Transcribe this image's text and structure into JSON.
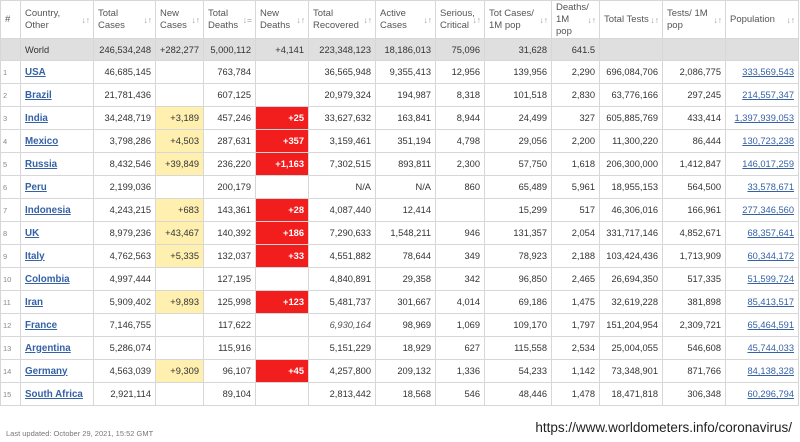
{
  "headers": [
    {
      "label": "#",
      "sort": false
    },
    {
      "label": "Country, Other",
      "sort": true
    },
    {
      "label": "Total Cases",
      "sort": true
    },
    {
      "label": "New Cases",
      "sort": true
    },
    {
      "label": "Total Deaths",
      "sort": true,
      "active": true
    },
    {
      "label": "New Deaths",
      "sort": true
    },
    {
      "label": "Total Recovered",
      "sort": true
    },
    {
      "label": "Active Cases",
      "sort": true
    },
    {
      "label": "Serious, Critical",
      "sort": true
    },
    {
      "label": "Tot Cases/ 1M pop",
      "sort": true
    },
    {
      "label": "Deaths/ 1M pop",
      "sort": true
    },
    {
      "label": "Total Tests",
      "sort": true
    },
    {
      "label": "Tests/ 1M pop",
      "sort": true
    },
    {
      "label": "Population",
      "sort": true
    }
  ],
  "sort_icon": "↓↑",
  "sort_icon_active": "↓=",
  "world": {
    "name": "World",
    "total_cases": "246,534,248",
    "new_cases": "+282,277",
    "total_deaths": "5,000,112",
    "new_deaths": "+4,141",
    "total_recovered": "223,348,123",
    "active_cases": "18,186,013",
    "serious": "75,096",
    "cases_per_1m": "31,628",
    "deaths_per_1m": "641.5",
    "total_tests": "",
    "tests_per_1m": "",
    "population": ""
  },
  "rows": [
    {
      "idx": "1",
      "name": "USA",
      "total_cases": "46,685,145",
      "new_cases": "",
      "total_deaths": "763,784",
      "new_deaths": "",
      "total_recovered": "36,565,948",
      "active_cases": "9,355,413",
      "serious": "12,956",
      "cases_per_1m": "139,956",
      "deaths_per_1m": "2,290",
      "total_tests": "696,084,706",
      "tests_per_1m": "2,086,775",
      "population": "333,569,543"
    },
    {
      "idx": "2",
      "name": "Brazil",
      "total_cases": "21,781,436",
      "new_cases": "",
      "total_deaths": "607,125",
      "new_deaths": "",
      "total_recovered": "20,979,324",
      "active_cases": "194,987",
      "serious": "8,318",
      "cases_per_1m": "101,518",
      "deaths_per_1m": "2,830",
      "total_tests": "63,776,166",
      "tests_per_1m": "297,245",
      "population": "214,557,347"
    },
    {
      "idx": "3",
      "name": "India",
      "total_cases": "34,248,719",
      "new_cases": "+3,189",
      "total_deaths": "457,246",
      "new_deaths": "+25",
      "total_recovered": "33,627,632",
      "active_cases": "163,841",
      "serious": "8,944",
      "cases_per_1m": "24,499",
      "deaths_per_1m": "327",
      "total_tests": "605,885,769",
      "tests_per_1m": "433,414",
      "population": "1,397,939,053"
    },
    {
      "idx": "4",
      "name": "Mexico",
      "total_cases": "3,798,286",
      "new_cases": "+4,503",
      "total_deaths": "287,631",
      "new_deaths": "+357",
      "total_recovered": "3,159,461",
      "active_cases": "351,194",
      "serious": "4,798",
      "cases_per_1m": "29,056",
      "deaths_per_1m": "2,200",
      "total_tests": "11,300,220",
      "tests_per_1m": "86,444",
      "population": "130,723,238"
    },
    {
      "idx": "5",
      "name": "Russia",
      "total_cases": "8,432,546",
      "new_cases": "+39,849",
      "total_deaths": "236,220",
      "new_deaths": "+1,163",
      "total_recovered": "7,302,515",
      "active_cases": "893,811",
      "serious": "2,300",
      "cases_per_1m": "57,750",
      "deaths_per_1m": "1,618",
      "total_tests": "206,300,000",
      "tests_per_1m": "1,412,847",
      "population": "146,017,259"
    },
    {
      "idx": "6",
      "name": "Peru",
      "total_cases": "2,199,036",
      "new_cases": "",
      "total_deaths": "200,179",
      "new_deaths": "",
      "total_recovered": "N/A",
      "active_cases": "N/A",
      "serious": "860",
      "cases_per_1m": "65,489",
      "deaths_per_1m": "5,961",
      "total_tests": "18,955,153",
      "tests_per_1m": "564,500",
      "population": "33,578,671"
    },
    {
      "idx": "7",
      "name": "Indonesia",
      "total_cases": "4,243,215",
      "new_cases": "+683",
      "total_deaths": "143,361",
      "new_deaths": "+28",
      "total_recovered": "4,087,440",
      "active_cases": "12,414",
      "serious": "",
      "cases_per_1m": "15,299",
      "deaths_per_1m": "517",
      "total_tests": "46,306,016",
      "tests_per_1m": "166,961",
      "population": "277,346,560"
    },
    {
      "idx": "8",
      "name": "UK",
      "total_cases": "8,979,236",
      "new_cases": "+43,467",
      "total_deaths": "140,392",
      "new_deaths": "+186",
      "total_recovered": "7,290,633",
      "active_cases": "1,548,211",
      "serious": "946",
      "cases_per_1m": "131,357",
      "deaths_per_1m": "2,054",
      "total_tests": "331,717,146",
      "tests_per_1m": "4,852,671",
      "population": "68,357,641"
    },
    {
      "idx": "9",
      "name": "Italy",
      "total_cases": "4,762,563",
      "new_cases": "+5,335",
      "total_deaths": "132,037",
      "new_deaths": "+33",
      "total_recovered": "4,551,882",
      "active_cases": "78,644",
      "serious": "349",
      "cases_per_1m": "78,923",
      "deaths_per_1m": "2,188",
      "total_tests": "103,424,436",
      "tests_per_1m": "1,713,909",
      "population": "60,344,172"
    },
    {
      "idx": "10",
      "name": "Colombia",
      "total_cases": "4,997,444",
      "new_cases": "",
      "total_deaths": "127,195",
      "new_deaths": "",
      "total_recovered": "4,840,891",
      "active_cases": "29,358",
      "serious": "342",
      "cases_per_1m": "96,850",
      "deaths_per_1m": "2,465",
      "total_tests": "26,694,350",
      "tests_per_1m": "517,335",
      "population": "51,599,724"
    },
    {
      "idx": "11",
      "name": "Iran",
      "total_cases": "5,909,402",
      "new_cases": "+9,893",
      "total_deaths": "125,998",
      "new_deaths": "+123",
      "total_recovered": "5,481,737",
      "active_cases": "301,667",
      "serious": "4,014",
      "cases_per_1m": "69,186",
      "deaths_per_1m": "1,475",
      "total_tests": "32,619,228",
      "tests_per_1m": "381,898",
      "population": "85,413,517"
    },
    {
      "idx": "12",
      "name": "France",
      "total_cases": "7,146,755",
      "new_cases": "",
      "total_deaths": "117,622",
      "new_deaths": "",
      "total_recovered": "6,930,164",
      "recovered_italic": true,
      "active_cases": "98,969",
      "serious": "1,069",
      "cases_per_1m": "109,170",
      "deaths_per_1m": "1,797",
      "total_tests": "151,204,954",
      "tests_per_1m": "2,309,721",
      "population": "65,464,591"
    },
    {
      "idx": "13",
      "name": "Argentina",
      "total_cases": "5,286,074",
      "new_cases": "",
      "total_deaths": "115,916",
      "new_deaths": "",
      "total_recovered": "5,151,229",
      "active_cases": "18,929",
      "serious": "627",
      "cases_per_1m": "115,558",
      "deaths_per_1m": "2,534",
      "total_tests": "25,004,055",
      "tests_per_1m": "546,608",
      "population": "45,744,033"
    },
    {
      "idx": "14",
      "name": "Germany",
      "total_cases": "4,563,039",
      "new_cases": "+9,309",
      "total_deaths": "96,107",
      "new_deaths": "+45",
      "total_recovered": "4,257,800",
      "active_cases": "209,132",
      "serious": "1,336",
      "cases_per_1m": "54,233",
      "deaths_per_1m": "1,142",
      "total_tests": "73,348,901",
      "tests_per_1m": "871,766",
      "population": "84,138,328"
    },
    {
      "idx": "15",
      "name": "South Africa",
      "total_cases": "2,921,114",
      "new_cases": "",
      "total_deaths": "89,104",
      "new_deaths": "",
      "total_recovered": "2,813,442",
      "active_cases": "18,568",
      "serious": "546",
      "cases_per_1m": "48,446",
      "deaths_per_1m": "1,478",
      "total_tests": "18,471,818",
      "tests_per_1m": "306,348",
      "population": "60,296,794"
    }
  ],
  "footer": {
    "last_updated": "Last updated: October 29, 2021, 15:52 GMT",
    "source_url": "https://www.worldometers.info/coronavirus/"
  },
  "colors": {
    "link": "#3561a7",
    "new_cases_highlight": "#fff0b0",
    "new_deaths_highlight": "#f21d1d",
    "world_row": "#dfdfdf"
  }
}
